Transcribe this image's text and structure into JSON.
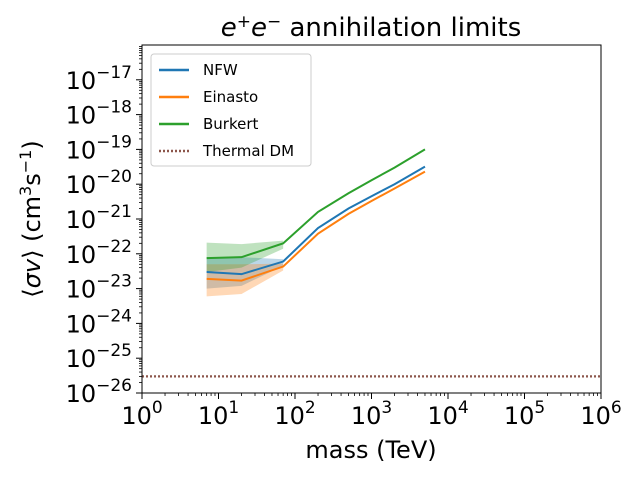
{
  "chart_data": {
    "type": "line",
    "title": "e+e− annihilation limits",
    "title_parts": {
      "base1": "e",
      "sup1": "+",
      "base2": "e",
      "sup2": "−",
      "rest": " annihilation limits"
    },
    "xlabel": "mass (TeV)",
    "ylabel": "⟨σv⟩ (cm³s⁻¹)",
    "ylabel_parts": {
      "open": "⟨",
      "sigma": "σ",
      "v": "v",
      "close": "⟩ (cm",
      "sup3": "3",
      "s": "s",
      "supm1": "−1",
      "end": ")"
    },
    "x_scale": "log",
    "y_scale": "log",
    "xlim": [
      1,
      1000000
    ],
    "ylim": [
      1e-26,
      1e-16
    ],
    "x_ticks": [
      {
        "value": 1,
        "base": "10",
        "exp": "0"
      },
      {
        "value": 10,
        "base": "10",
        "exp": "1"
      },
      {
        "value": 100,
        "base": "10",
        "exp": "2"
      },
      {
        "value": 1000,
        "base": "10",
        "exp": "3"
      },
      {
        "value": 10000,
        "base": "10",
        "exp": "4"
      },
      {
        "value": 100000,
        "base": "10",
        "exp": "5"
      },
      {
        "value": 1000000,
        "base": "10",
        "exp": "6"
      }
    ],
    "y_ticks": [
      {
        "value": 1e-26,
        "base": "10",
        "exp": "−26"
      },
      {
        "value": 1e-25,
        "base": "10",
        "exp": "−25"
      },
      {
        "value": 1e-24,
        "base": "10",
        "exp": "−24"
      },
      {
        "value": 1e-23,
        "base": "10",
        "exp": "−23"
      },
      {
        "value": 1e-22,
        "base": "10",
        "exp": "−22"
      },
      {
        "value": 1e-21,
        "base": "10",
        "exp": "−21"
      },
      {
        "value": 1e-20,
        "base": "10",
        "exp": "−20"
      },
      {
        "value": 1e-19,
        "base": "10",
        "exp": "−19"
      },
      {
        "value": 1e-18,
        "base": "10",
        "exp": "−18"
      },
      {
        "value": 1e-17,
        "base": "10",
        "exp": "−17"
      }
    ],
    "legend_position": "top-left",
    "grid": false,
    "series": [
      {
        "name": "NFW",
        "color": "#1f77b4",
        "style": "solid",
        "x": [
          7,
          20,
          70,
          200,
          500,
          1000,
          2000,
          5000
        ],
        "y": [
          3e-23,
          2.6e-23,
          6e-23,
          5.5e-22,
          2e-21,
          4.5e-21,
          1e-20,
          3.2e-20
        ],
        "band_low": [
          1e-23,
          1.2e-23,
          4.5e-23
        ],
        "band_high": [
          8e-23,
          8e-23,
          7e-23
        ],
        "band_x": [
          7,
          20,
          70
        ]
      },
      {
        "name": "Einasto",
        "color": "#ff7f0e",
        "style": "solid",
        "x": [
          7,
          20,
          70,
          200,
          500,
          1000,
          2000,
          5000
        ],
        "y": [
          1.9e-23,
          1.7e-23,
          4.3e-23,
          3.8e-22,
          1.4e-21,
          3.3e-21,
          7.5e-21,
          2.3e-20
        ],
        "band_low": [
          6e-24,
          7e-24,
          3.3e-23
        ],
        "band_high": [
          5e-23,
          5e-23,
          5.2e-23
        ],
        "band_x": [
          7,
          20,
          70
        ]
      },
      {
        "name": "Burkert",
        "color": "#2ca02c",
        "style": "solid",
        "x": [
          7,
          20,
          70,
          200,
          500,
          1000,
          2000,
          5000
        ],
        "y": [
          7.5e-23,
          8e-23,
          2e-22,
          1.6e-21,
          5.5e-21,
          1.3e-20,
          3e-20,
          1e-19
        ],
        "band_low": [
          3e-23,
          4e-23,
          1.4e-22
        ],
        "band_high": [
          2.1e-22,
          1.9e-22,
          2.4e-22
        ],
        "band_x": [
          7,
          20,
          70
        ]
      },
      {
        "name": "Thermal DM",
        "color": "#8c564b",
        "style": "dotted",
        "x": [
          1,
          1000000
        ],
        "y": [
          3e-26,
          3e-26
        ]
      }
    ]
  }
}
